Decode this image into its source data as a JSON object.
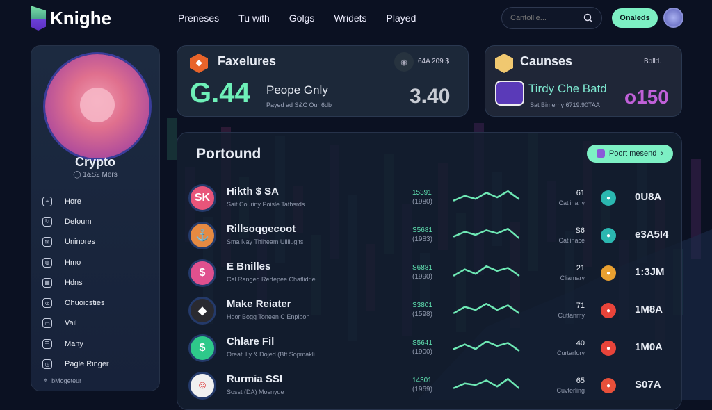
{
  "header": {
    "logo": "Knighe",
    "nav": [
      "Preneses",
      "Tu with",
      "Golgs",
      "Wridets",
      "Played"
    ],
    "search_placeholder": "Cantollie...",
    "action_label": "Onaleds"
  },
  "sidebar": {
    "title": "Crypto",
    "subtitle": "◯ 1&S2 Mers",
    "items": [
      {
        "label": "Hore",
        "icon": "map-pin-icon"
      },
      {
        "label": "Defoum",
        "icon": "refresh-icon"
      },
      {
        "label": "Uninores",
        "icon": "mail-icon"
      },
      {
        "label": "Hmo",
        "icon": "globe-icon"
      },
      {
        "label": "Hdns",
        "icon": "calendar-icon"
      },
      {
        "label": "Ohuoicsties",
        "icon": "compass-icon"
      },
      {
        "label": "Vail",
        "icon": "inbox-icon"
      },
      {
        "label": "Many",
        "icon": "users-icon"
      },
      {
        "label": "Pagle Ringer",
        "icon": "clock-icon"
      }
    ],
    "footer": "bMogeteur"
  },
  "card1": {
    "title": "Faxelures",
    "meta": "64A 209 $",
    "value": "G.44",
    "label": "Peope Gnly",
    "sub": "Payed ad S&C Our 6db",
    "right_value": "3.40"
  },
  "card2": {
    "title": "Caunses",
    "meta": "Bolld.",
    "label": "Tirdy Che Batd",
    "sub": "Sat Bimerny 6719.90TAA",
    "value": "o150"
  },
  "panel": {
    "title": "Portound",
    "button": "Poort mesend",
    "rows": [
      {
        "name": "Hikth $ SA",
        "desc": "Sait Couriny Poisle Tathsrds",
        "value": "15391",
        "sub": "(1980)",
        "count": "61",
        "count_label": "Catlinany",
        "amount": "0U8A",
        "icon_text": "SK",
        "icon_color": "#e8557a",
        "badge_color": "#2bb7b0",
        "spark": [
          3,
          6,
          4,
          8,
          5,
          9,
          4
        ]
      },
      {
        "name": "Rillsoqgecoot",
        "desc": "Sma Nay Thiheam Ullilugits",
        "value": "S5681",
        "sub": "(1983)",
        "count": "S6",
        "count_label": "Catlinace",
        "amount": "e3A5I4",
        "icon_text": "⚓",
        "icon_color": "#e58a42",
        "badge_color": "#2bb7b0",
        "spark": [
          4,
          7,
          5,
          8,
          6,
          9,
          3
        ]
      },
      {
        "name": "E Bnilles",
        "desc": "Cal Ranged Rerfepee Chatlidrle",
        "value": "S6881",
        "sub": "(1990)",
        "count": "21",
        "count_label": "Cliamary",
        "amount": "1:3JM",
        "icon_text": "$",
        "icon_color": "#e0508e",
        "badge_color": "#e9a030",
        "spark": [
          3,
          7,
          4,
          9,
          6,
          8,
          3
        ]
      },
      {
        "name": "Make Reiater",
        "desc": "Hdor Bogg Toneen C Enpibon",
        "value": "S3801",
        "sub": "(1598)",
        "count": "71",
        "count_label": "Cuttanmy",
        "amount": "1M8A",
        "icon_text": "◆",
        "icon_color": "#2a2a30",
        "badge_color": "#e8443a",
        "spark": [
          3,
          7,
          5,
          9,
          5,
          8,
          3
        ]
      },
      {
        "name": "Chlare Fil",
        "desc": "Oreatl Ly & Dojed (Bft Sopmakli",
        "value": "S5641",
        "sub": "(1900)",
        "count": "40",
        "count_label": "Curtarfory",
        "amount": "1M0A",
        "icon_text": "$",
        "icon_color": "#2ec98a",
        "badge_color": "#e8443a",
        "spark": [
          4,
          7,
          4,
          9,
          6,
          8,
          3
        ]
      },
      {
        "name": "Rurmia SSI",
        "desc": "Sosst (DA) Mosnyde",
        "value": "14301",
        "sub": "(1969)",
        "count": "65",
        "count_label": "Cuvterling",
        "amount": "S07A",
        "icon_text": "☺",
        "icon_color": "#f0f0f0",
        "badge_color": "#e8503a",
        "spark": [
          3,
          6,
          5,
          8,
          4,
          9,
          3
        ]
      }
    ]
  },
  "colors": {
    "accent": "#7df0c4",
    "background": "#0b1122",
    "value_green": "#6ef0b8",
    "value_purple": "#c060d8"
  }
}
